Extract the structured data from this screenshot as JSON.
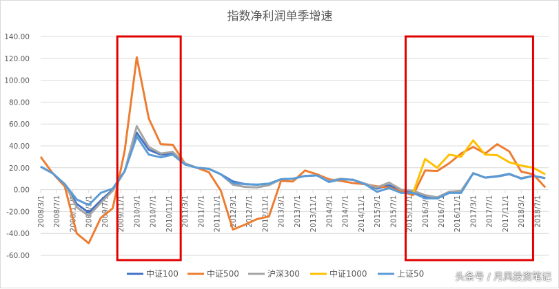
{
  "chart_data": {
    "type": "line",
    "title": "指数净利润单季增速",
    "ylim": [
      -60,
      140
    ],
    "y_ticks": [
      -60,
      -40,
      -20,
      0,
      20,
      40,
      60,
      80,
      100,
      120,
      140
    ],
    "y_tick_labels": [
      "-60.00",
      "-40.00",
      "-20.00",
      "0.00",
      "20.00",
      "40.00",
      "60.00",
      "80.00",
      "100.00",
      "120.00",
      "140.00"
    ],
    "x_tick_labels": [
      "2008/3/1",
      "2008/7/1",
      "2008/11/1",
      "2009/3/1",
      "2009/7/1",
      "2009/11/1",
      "2010/3/1",
      "2010/7/1",
      "2010/11/1",
      "2011/3/1",
      "2011/7/1",
      "2011/11/1",
      "2012/3/1",
      "2012/7/1",
      "2012/11/1",
      "2013/3/1",
      "2013/7/1",
      "2013/11/1",
      "2014/3/1",
      "2014/7/1",
      "2014/11/1",
      "2015/3/1",
      "2015/7/1",
      "2015/11/1",
      "2016/3/1",
      "2016/7/1",
      "2016/11/1",
      "2017/3/1",
      "2017/7/1",
      "2017/11/1",
      "2018/3/1",
      "2018/7/1"
    ],
    "x": [
      "2008/3",
      "2008/6",
      "2008/9",
      "2008/12",
      "2009/3",
      "2009/6",
      "2009/9",
      "2009/12",
      "2010/3",
      "2010/6",
      "2010/9",
      "2010/12",
      "2011/3",
      "2011/6",
      "2011/9",
      "2011/12",
      "2012/3",
      "2012/6",
      "2012/9",
      "2012/12",
      "2013/3",
      "2013/6",
      "2013/9",
      "2013/12",
      "2014/3",
      "2014/6",
      "2014/9",
      "2014/12",
      "2015/3",
      "2015/6",
      "2015/9",
      "2015/12",
      "2016/3",
      "2016/6",
      "2016/9",
      "2016/12",
      "2017/3",
      "2017/6",
      "2017/9",
      "2017/12",
      "2018/3",
      "2018/6",
      "2018/9"
    ],
    "grid": true,
    "legend_position": "bottom",
    "series": [
      {
        "name": "中证100",
        "color": "#4472C4",
        "values": [
          21,
          15,
          5,
          -13,
          -21,
          -10,
          0,
          17,
          52,
          36.5,
          32,
          33,
          24,
          20,
          19,
          14,
          7.5,
          5,
          4.5,
          5.5,
          9.5,
          10,
          12.5,
          13,
          7.5,
          9.5,
          9,
          5,
          1,
          4,
          -1,
          -2.5,
          -6,
          -8,
          -3,
          -2,
          15,
          11,
          12,
          14,
          10.5,
          12.5,
          10.5
        ]
      },
      {
        "name": "中证500",
        "color": "#ED7D31",
        "values": [
          30,
          15,
          3,
          -40,
          -49,
          -26,
          -17,
          36,
          121,
          65,
          41.5,
          41,
          24,
          20,
          16,
          -1,
          -36.5,
          -32,
          -27,
          -24.5,
          8,
          7.5,
          17.5,
          14,
          9.5,
          8,
          6,
          5,
          3,
          2,
          -1.5,
          -5,
          17.5,
          17,
          24,
          33,
          39,
          33,
          41.5,
          35,
          16.5,
          14,
          2
        ]
      },
      {
        "name": "沪深300",
        "color": "#A5A5A5",
        "values": [
          21,
          15,
          5,
          -16,
          -24,
          -12,
          -1,
          17,
          58,
          39,
          33,
          34.5,
          24,
          20,
          19,
          14,
          4.5,
          2.5,
          2,
          4,
          9.5,
          10,
          12.5,
          13,
          8,
          10,
          9,
          5.5,
          2,
          6.5,
          0,
          -1,
          -5,
          -7,
          -2,
          -1,
          15,
          11,
          12.5,
          14,
          10.5,
          12.5,
          10.5
        ]
      },
      {
        "name": "中证1000",
        "color": "#FFC000",
        "values": [
          null,
          null,
          null,
          null,
          null,
          null,
          null,
          null,
          null,
          null,
          null,
          null,
          null,
          null,
          null,
          null,
          null,
          null,
          null,
          null,
          null,
          null,
          null,
          null,
          null,
          null,
          null,
          null,
          null,
          null,
          null,
          -3,
          28,
          20,
          32,
          30,
          45,
          32,
          31.5,
          25,
          22,
          20,
          14
        ]
      },
      {
        "name": "上证50",
        "color": "#5B9BD5",
        "values": [
          21,
          15,
          5,
          -9,
          -14,
          -3,
          1,
          17,
          48.5,
          32,
          29.5,
          32,
          23,
          20,
          19,
          14,
          6,
          5,
          4.5,
          5.5,
          9.5,
          10,
          12.5,
          13,
          7,
          9.5,
          9,
          5,
          -2,
          1.5,
          -3,
          -3,
          -8,
          -8,
          -3,
          -3,
          15,
          11,
          12,
          14.5,
          10,
          12.5,
          10.5
        ]
      }
    ],
    "annotations": [
      {
        "type": "highlight-box",
        "color": "#E00000",
        "from": "2009/11/1",
        "to": "2011/3/1"
      },
      {
        "type": "highlight-box",
        "color": "#E00000",
        "from": "2015/11/1",
        "to": "2018/7/1"
      }
    ]
  },
  "watermark": "头条号 / 月风投资笔记"
}
